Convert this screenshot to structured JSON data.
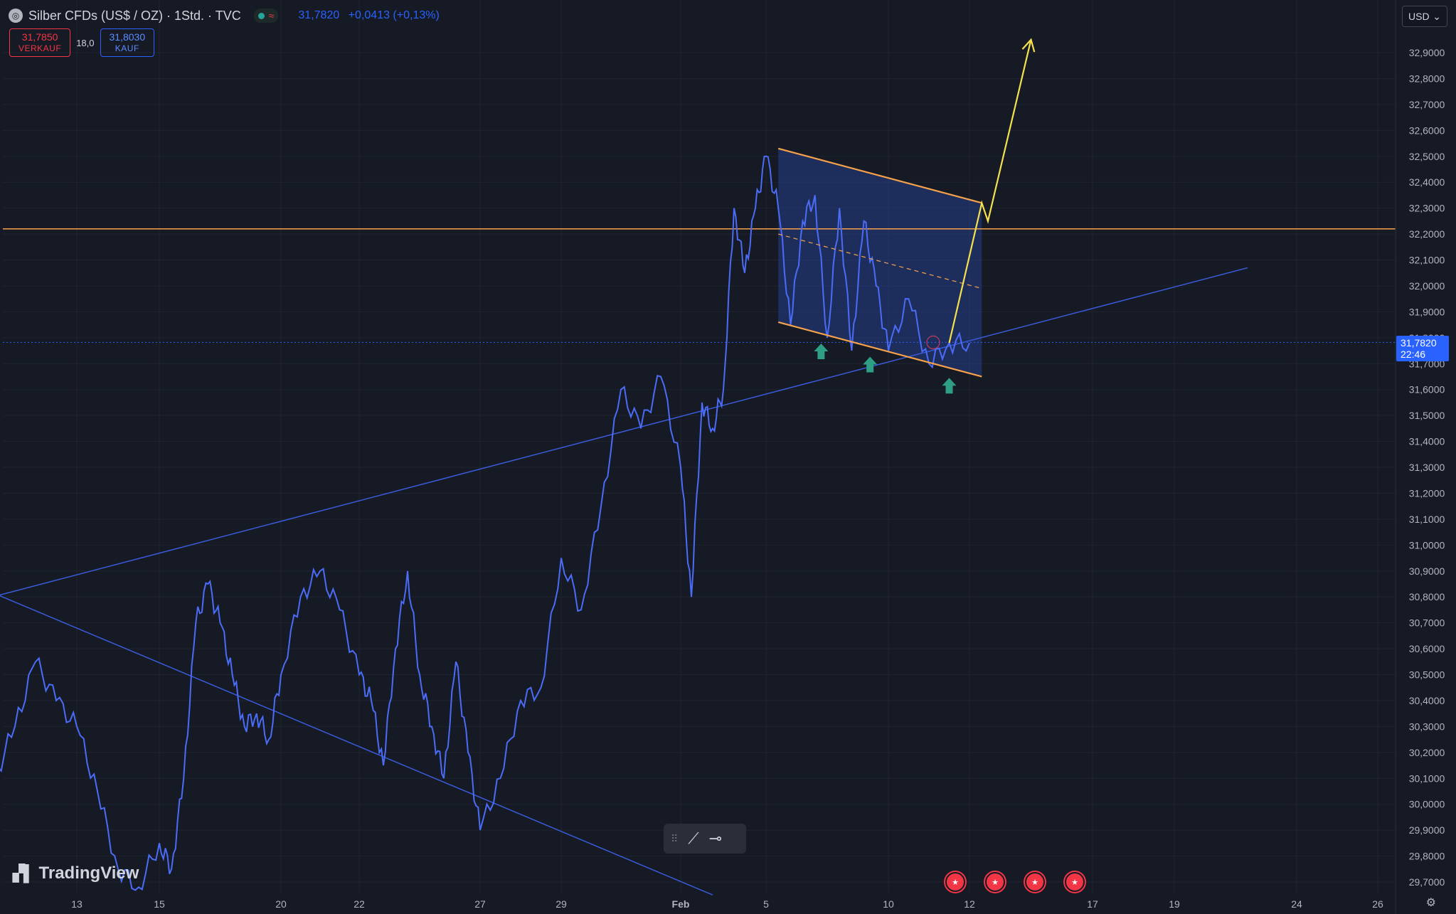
{
  "header": {
    "symbol_icon": "silver-coin-icon",
    "symbol_title": "Silber CFDs (US$ / OZ) · 1Std. · TVC",
    "status_wave": "≈",
    "last_price": "31,7820",
    "change": "+0,0413 (+0,13%)"
  },
  "trade": {
    "sell_price": "31,7850",
    "sell_label": "VERKAUF",
    "spread": "18,0",
    "buy_price": "31,8030",
    "buy_label": "KAUF"
  },
  "currency": "USD",
  "current_price_label": {
    "price": "31,7820",
    "countdown": "22:46"
  },
  "branding": {
    "logo_text": "TradingView"
  },
  "colors": {
    "background": "#161a25",
    "price_line": "#4a6cf7",
    "trendline": "#3a5bd9",
    "channel": "#f7a24b",
    "projection": "#f5e050",
    "arrow": "#2e9e86",
    "accent": "#2962ff"
  },
  "chart_data": {
    "type": "line",
    "title": "Silber CFDs (US$ / OZ) · 1Std. · TVC",
    "xlabel": "",
    "ylabel": "",
    "ylim": [
      29.65,
      32.98
    ],
    "x_ticks": [
      "13",
      "15",
      "20",
      "22",
      "27",
      "29",
      "Feb",
      "5",
      "10",
      "12",
      "17",
      "19",
      "24",
      "26"
    ],
    "y_ticks": [
      "32,9000",
      "32,8000",
      "32,7000",
      "32,6000",
      "32,5000",
      "32,4000",
      "32,3000",
      "32,2000",
      "32,1000",
      "32,0000",
      "31,9000",
      "31,8000",
      "31,7000",
      "31,6000",
      "31,5000",
      "31,4000",
      "31,3000",
      "31,2000",
      "31,1000",
      "31,0000",
      "30,9000",
      "30,8000",
      "30,7000",
      "30,6000",
      "30,5000",
      "30,4000",
      "30,3000",
      "30,2000",
      "30,1000",
      "30,0000",
      "29,9000",
      "29,8000",
      "29,7000"
    ],
    "series": [
      {
        "x": [
          "2025-01-10 00:00",
          "2025-01-10 12:00",
          "2025-01-11 00:00",
          "2025-01-11 12:00",
          "2025-01-12 00:00",
          "2025-01-12 12:00",
          "2025-01-13 00:00",
          "2025-01-13 12:00",
          "2025-01-14 00:00",
          "2025-01-14 12:00",
          "2025-01-15 00:00",
          "2025-01-15 12:00",
          "2025-01-16 00:00",
          "2025-01-16 12:00",
          "2025-01-17 00:00",
          "2025-01-17 12:00",
          "2025-01-18 00:00",
          "2025-01-18 12:00",
          "2025-01-19 00:00",
          "2025-01-19 12:00",
          "2025-01-20 00:00",
          "2025-01-20 12:00",
          "2025-01-21 00:00",
          "2025-01-21 12:00",
          "2025-01-22 00:00",
          "2025-01-22 12:00",
          "2025-01-23 00:00",
          "2025-01-23 12:00",
          "2025-01-24 00:00",
          "2025-01-24 12:00",
          "2025-01-25 00:00",
          "2025-01-25 12:00",
          "2025-01-26 00:00",
          "2025-01-26 12:00",
          "2025-01-27 00:00",
          "2025-01-27 12:00",
          "2025-01-28 00:00",
          "2025-01-28 12:00",
          "2025-01-29 00:00",
          "2025-01-29 12:00",
          "2025-01-30 00:00",
          "2025-01-30 12:00",
          "2025-01-31 00:00",
          "2025-01-31 12:00",
          "2025-02-01 00:00",
          "2025-02-01 12:00",
          "2025-02-02 00:00",
          "2025-02-02 12:00",
          "2025-02-03 00:00",
          "2025-02-03 12:00",
          "2025-02-04 00:00",
          "2025-02-04 12:00",
          "2025-02-05 00:00",
          "2025-02-05 12:00",
          "2025-02-06 00:00",
          "2025-02-06 12:00",
          "2025-02-07 00:00",
          "2025-02-07 12:00",
          "2025-02-08 00:00",
          "2025-02-08 12:00",
          "2025-02-09 00:00",
          "2025-02-09 12:00",
          "2025-02-10 00:00",
          "2025-02-10 12:00",
          "2025-02-11 00:00",
          "2025-02-11 12:00",
          "2025-02-12 00:00"
        ],
        "values": [
          30.15,
          30.35,
          30.1,
          30.3,
          30.55,
          30.4,
          30.3,
          30.05,
          29.75,
          29.68,
          29.85,
          29.75,
          30.1,
          30.7,
          30.85,
          30.7,
          30.5,
          30.3,
          30.35,
          30.25,
          30.5,
          30.8,
          30.9,
          30.75,
          30.5,
          30.4,
          30.15,
          30.6,
          30.9,
          30.5,
          30.3,
          30.1,
          30.55,
          30.2,
          29.9,
          30.1,
          30.4,
          30.45,
          30.95,
          30.75,
          31.15,
          31.6,
          31.45,
          31.65,
          31.3,
          30.8,
          31.55,
          31.45,
          31.6,
          32.3,
          32.05,
          32.3,
          32.5,
          32.3,
          31.85,
          32.25,
          32.35,
          31.8,
          32.3,
          31.75,
          32.25,
          32.0,
          31.75,
          31.95,
          31.7,
          31.78,
          31.78
        ],
        "color": "#4a6cf7"
      }
    ],
    "annotations": {
      "horizontal_level": 32.22,
      "current_price": 31.782,
      "channel_upper": {
        "from": [
          "2025-02-05 12:00",
          32.53
        ],
        "to": [
          "2025-02-12 12:00",
          32.32
        ]
      },
      "channel_lower": {
        "from": [
          "2025-02-05 12:00",
          31.86
        ],
        "to": [
          "2025-02-12 12:00",
          31.65
        ]
      },
      "channel_mid": {
        "from": [
          "2025-02-05 12:00",
          32.2
        ],
        "to": [
          "2025-02-12 12:00",
          31.99
        ]
      },
      "rising_trendline": {
        "from": [
          "2025-01-10 00:00",
          30.76
        ],
        "to": [
          "2025-02-22 00:00",
          32.07
        ]
      },
      "falling_trendline": {
        "from": [
          "2025-01-10 00:00",
          30.88
        ],
        "to": [
          "2025-02-02 12:00",
          29.65
        ]
      },
      "projection": [
        [
          "2025-02-11 12:00",
          31.78
        ],
        [
          "2025-02-12 12:00",
          32.32
        ],
        [
          "2025-02-12 18:00",
          32.25
        ],
        [
          "2025-02-14 12:00",
          32.95
        ]
      ],
      "support_arrows": [
        "2025-02-07 06:00",
        "2025-02-09 06:00",
        "2025-02-11 12:00"
      ],
      "event_markers": [
        "2025-02-12 00:00",
        "2025-02-13 00:00",
        "2025-02-14 00:00",
        "2025-02-15 00:00"
      ]
    }
  }
}
